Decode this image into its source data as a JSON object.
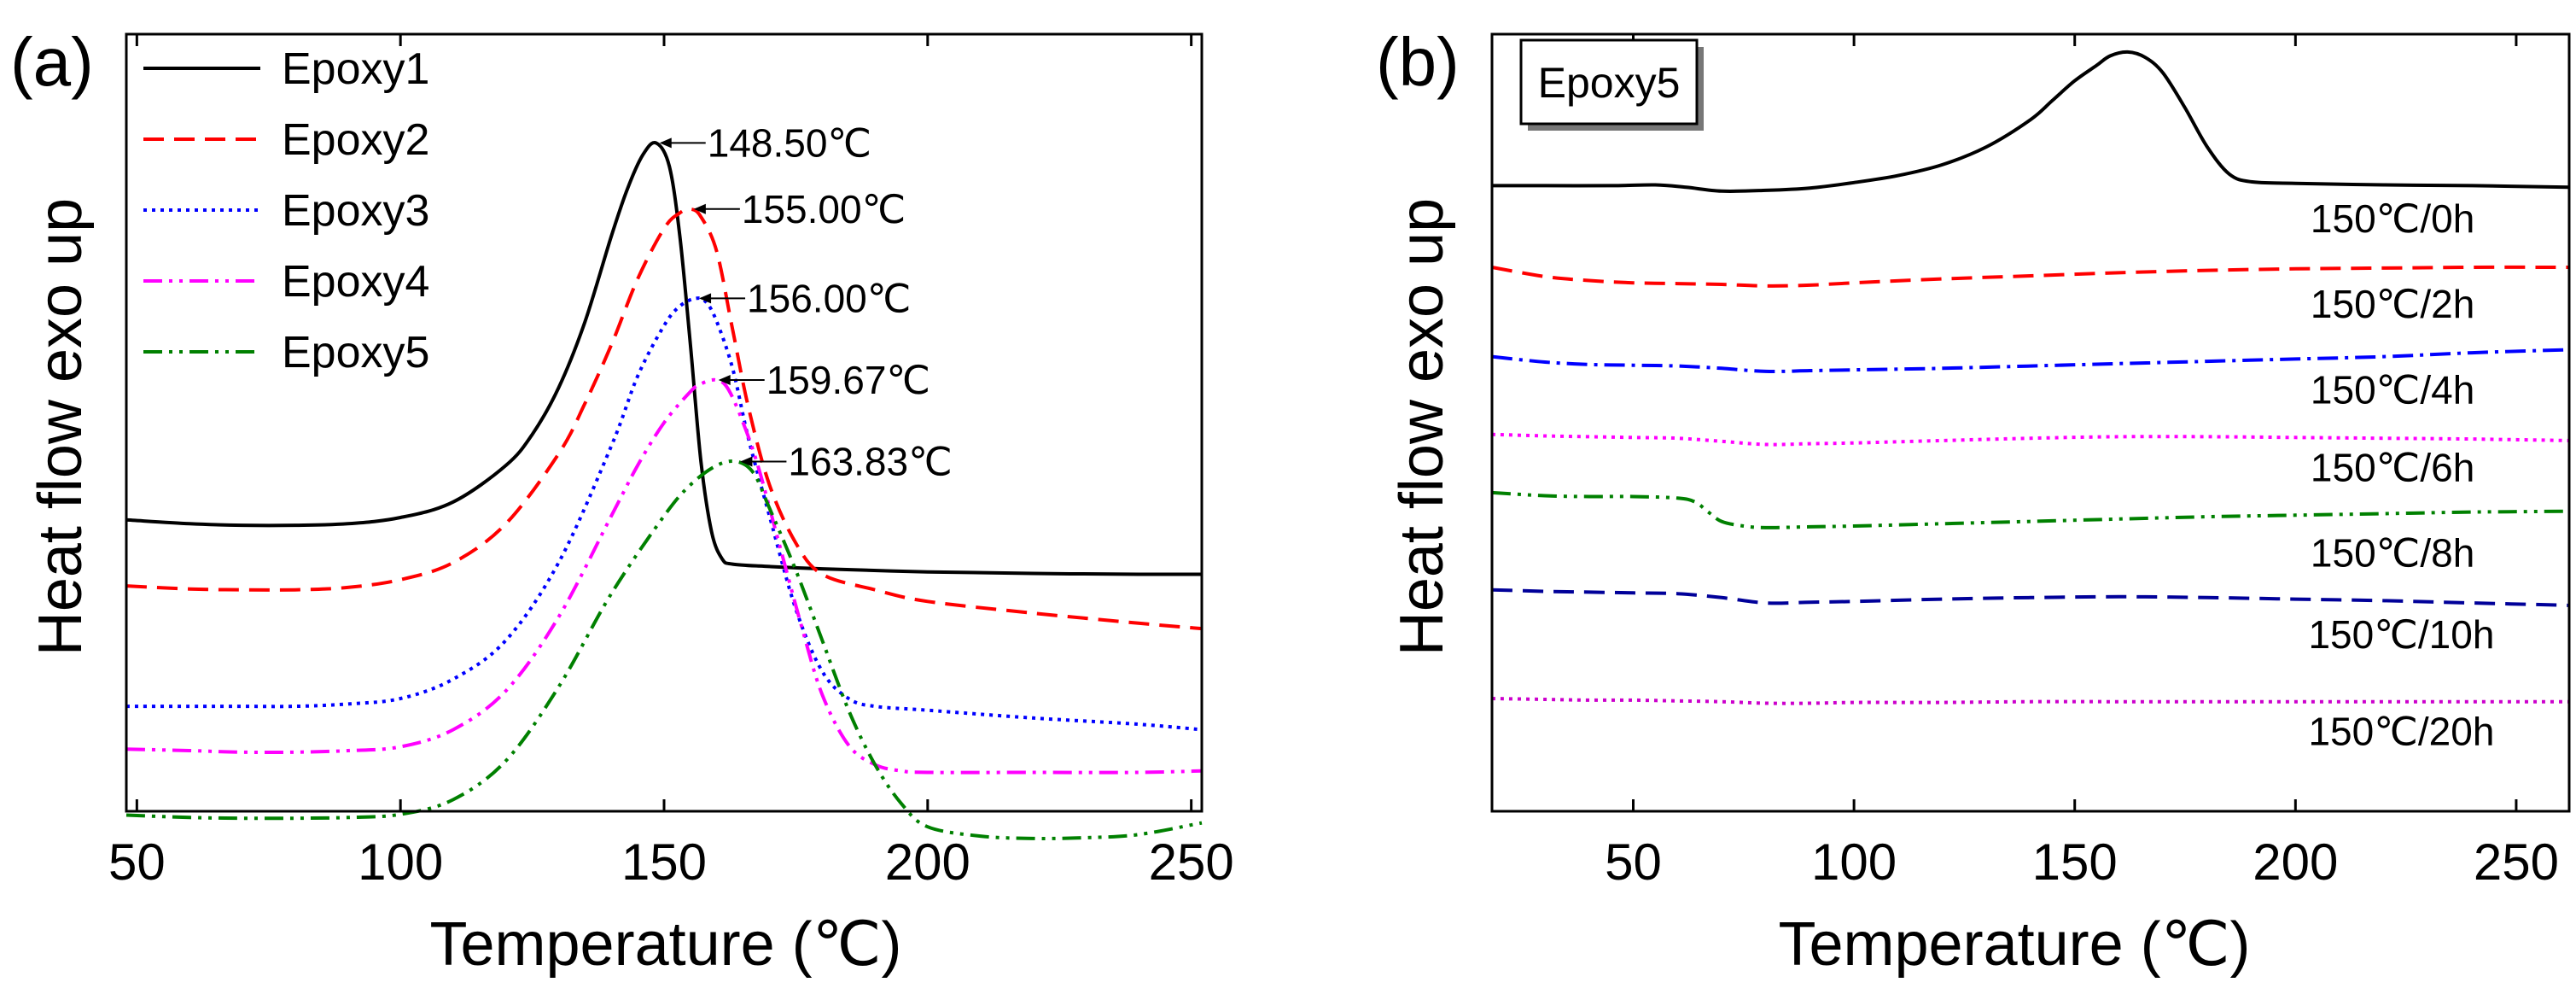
{
  "chart_data": [
    {
      "type": "line",
      "panel": "(a)",
      "xlabel": "Temperature (℃)",
      "ylabel": "Heat flow exo up",
      "xlim": [
        48,
        252
      ],
      "ylim": [
        0,
        100
      ],
      "xticks": [
        50,
        100,
        150,
        200,
        250
      ],
      "legend_position": "top-left",
      "series": [
        {
          "name": "Epoxy1",
          "color": "#000000",
          "dash": "solid",
          "x": [
            48,
            60,
            70,
            80,
            90,
            100,
            110,
            120,
            125,
            130,
            135,
            140,
            143,
            146,
            148.5,
            151,
            153,
            155,
            157,
            159,
            161,
            163,
            170,
            180,
            200,
            220,
            240,
            252
          ],
          "y": [
            37.5,
            37.0,
            36.8,
            36.8,
            37.0,
            37.8,
            39.8,
            44.5,
            48.5,
            54.5,
            63.0,
            74.0,
            80.0,
            84.5,
            86.0,
            83.0,
            74.0,
            60.0,
            45.0,
            36.0,
            32.5,
            31.8,
            31.5,
            31.2,
            30.8,
            30.6,
            30.5,
            30.5
          ]
        },
        {
          "name": "Epoxy2",
          "color": "#ff0000",
          "dash": "dashed",
          "x": [
            48,
            60,
            70,
            80,
            90,
            100,
            110,
            120,
            130,
            135,
            140,
            145,
            150,
            153,
            155,
            157,
            160,
            163,
            166,
            170,
            175,
            180,
            190,
            200,
            220,
            240,
            252
          ],
          "y": [
            29.0,
            28.6,
            28.5,
            28.5,
            28.8,
            29.8,
            32.0,
            37.0,
            46.0,
            52.5,
            60.0,
            68.5,
            75.0,
            77.0,
            77.5,
            76.5,
            72.0,
            62.0,
            52.0,
            42.0,
            34.5,
            30.5,
            28.5,
            27.0,
            25.5,
            24.2,
            23.5
          ]
        },
        {
          "name": "Epoxy3",
          "color": "#0000ff",
          "dash": "dotted",
          "x": [
            48,
            60,
            70,
            80,
            90,
            100,
            110,
            120,
            130,
            140,
            145,
            150,
            153,
            156,
            158,
            160,
            163,
            166,
            170,
            175,
            180,
            185,
            190,
            200,
            220,
            240,
            252
          ],
          "y": [
            13.5,
            13.5,
            13.5,
            13.5,
            13.8,
            14.5,
            17.0,
            22.0,
            32.0,
            47.0,
            56.0,
            62.5,
            65.0,
            66.0,
            65.5,
            63.0,
            57.0,
            48.0,
            38.0,
            26.0,
            18.0,
            14.5,
            13.5,
            13.0,
            12.0,
            11.2,
            10.5
          ]
        },
        {
          "name": "Epoxy4",
          "color": "#ff00ff",
          "dash": "dash-dot-dot",
          "x": [
            48,
            60,
            70,
            80,
            90,
            100,
            110,
            120,
            130,
            140,
            145,
            150,
            155,
            157,
            159.67,
            162,
            165,
            168,
            172,
            176,
            180,
            185,
            190,
            195,
            200,
            220,
            240,
            252
          ],
          "y": [
            8.0,
            7.8,
            7.6,
            7.6,
            7.8,
            8.3,
            10.5,
            15.5,
            25.0,
            38.0,
            44.5,
            50.0,
            54.0,
            55.0,
            55.5,
            54.5,
            50.0,
            44.0,
            34.0,
            24.0,
            15.0,
            8.5,
            6.0,
            5.2,
            5.0,
            5.0,
            5.0,
            5.2
          ]
        },
        {
          "name": "Epoxy5",
          "color": "#008000",
          "dash": "dash-dot-dot",
          "x": [
            48,
            60,
            70,
            80,
            90,
            100,
            110,
            120,
            130,
            140,
            150,
            155,
            160,
            163.83,
            167,
            170,
            175,
            180,
            185,
            190,
            195,
            200,
            210,
            220,
            230,
            240,
            252
          ],
          "y": [
            -0.5,
            -0.8,
            -0.9,
            -0.9,
            -0.8,
            -0.4,
            1.5,
            6.5,
            16.0,
            28.0,
            38.0,
            42.0,
            44.5,
            45.0,
            43.5,
            39.0,
            31.0,
            22.0,
            13.0,
            6.0,
            1.0,
            -2.0,
            -3.2,
            -3.5,
            -3.4,
            -3.0,
            -1.5
          ]
        }
      ],
      "peak_annotations": [
        {
          "text": "148.50℃",
          "x": 148.5,
          "y": 86.0
        },
        {
          "text": "155.00℃",
          "x": 155.0,
          "y": 77.5
        },
        {
          "text": "156.00℃",
          "x": 156.0,
          "y": 66.0
        },
        {
          "text": "159.67℃",
          "x": 159.67,
          "y": 55.5
        },
        {
          "text": "163.83℃",
          "x": 163.83,
          "y": 45.0
        }
      ]
    },
    {
      "type": "line",
      "panel": "(b)",
      "xlabel": "Temperature (℃)",
      "ylabel": "Heat flow exo up",
      "xlim": [
        18,
        262
      ],
      "ylim": [
        0,
        100
      ],
      "xticks": [
        50,
        100,
        150,
        200,
        250
      ],
      "sample_tag": "Epoxy5",
      "series": [
        {
          "name": "150℃/0h",
          "color": "#000000",
          "dash": "solid",
          "x": [
            18,
            30,
            45,
            55,
            62,
            70,
            80,
            90,
            100,
            110,
            120,
            130,
            140,
            145,
            150,
            155,
            158,
            162,
            166,
            170,
            175,
            180,
            185,
            190,
            200,
            220,
            240,
            262
          ],
          "y": [
            80.5,
            80.5,
            80.5,
            80.6,
            80.3,
            79.8,
            79.9,
            80.2,
            80.9,
            81.8,
            83.2,
            85.5,
            89.0,
            91.5,
            94.0,
            96.0,
            97.2,
            97.7,
            97.0,
            95.0,
            90.5,
            85.5,
            82.0,
            81.0,
            80.8,
            80.6,
            80.5,
            80.3
          ]
        },
        {
          "name": "150℃/2h",
          "color": "#ff0000",
          "dash": "dashed",
          "x": [
            18,
            30,
            40,
            50,
            60,
            70,
            80,
            90,
            100,
            120,
            140,
            160,
            180,
            200,
            220,
            240,
            262
          ],
          "y": [
            70.0,
            68.8,
            68.3,
            68.0,
            67.9,
            67.8,
            67.6,
            67.7,
            68.0,
            68.5,
            68.9,
            69.3,
            69.6,
            69.8,
            69.9,
            70.0,
            70.0
          ]
        },
        {
          "name": "150℃/4h",
          "color": "#0000ff",
          "dash": "dash-dot",
          "x": [
            18,
            30,
            40,
            50,
            60,
            70,
            80,
            90,
            100,
            120,
            140,
            160,
            180,
            200,
            220,
            240,
            262
          ],
          "y": [
            58.5,
            57.8,
            57.5,
            57.4,
            57.3,
            57.0,
            56.6,
            56.7,
            56.8,
            57.0,
            57.3,
            57.6,
            57.9,
            58.2,
            58.5,
            59.0,
            59.4
          ]
        },
        {
          "name": "150℃/6h",
          "color": "#ff00ff",
          "dash": "dotted",
          "x": [
            18,
            30,
            40,
            50,
            60,
            70,
            80,
            90,
            100,
            120,
            140,
            160,
            180,
            200,
            220,
            240,
            262
          ],
          "y": [
            48.5,
            48.3,
            48.2,
            48.1,
            48.0,
            47.6,
            47.2,
            47.3,
            47.4,
            47.7,
            48.0,
            48.2,
            48.2,
            48.1,
            48.0,
            47.9,
            47.7
          ]
        },
        {
          "name": "150℃/8h",
          "color": "#008000",
          "dash": "dash-dot-dot",
          "x": [
            18,
            30,
            40,
            50,
            60,
            64,
            67,
            70,
            75,
            80,
            90,
            100,
            120,
            140,
            160,
            180,
            200,
            220,
            240,
            262
          ],
          "y": [
            41.0,
            40.6,
            40.5,
            40.5,
            40.3,
            39.8,
            38.5,
            37.3,
            36.7,
            36.5,
            36.6,
            36.7,
            37.0,
            37.3,
            37.6,
            37.9,
            38.1,
            38.3,
            38.5,
            38.6
          ]
        },
        {
          "name": "150℃/10h",
          "color": "#000099",
          "dash": "dashed",
          "x": [
            18,
            30,
            40,
            50,
            60,
            70,
            80,
            90,
            100,
            120,
            140,
            160,
            180,
            200,
            220,
            240,
            262
          ],
          "y": [
            28.5,
            28.3,
            28.2,
            28.1,
            28.0,
            27.5,
            26.8,
            26.9,
            27.0,
            27.3,
            27.5,
            27.6,
            27.5,
            27.3,
            27.1,
            26.8,
            26.5
          ]
        },
        {
          "name": "150℃/20h",
          "color": "#cc00cc",
          "dash": "dotted",
          "x": [
            18,
            30,
            40,
            50,
            60,
            70,
            80,
            90,
            100,
            120,
            140,
            160,
            180,
            200,
            220,
            240,
            262
          ],
          "y": [
            14.5,
            14.4,
            14.3,
            14.3,
            14.2,
            14.1,
            13.9,
            13.9,
            14.0,
            14.0,
            14.1,
            14.1,
            14.1,
            14.1,
            14.1,
            14.1,
            14.1
          ]
        }
      ],
      "series_labels": [
        {
          "text": "150℃/0h",
          "x": 222,
          "y": 74.5
        },
        {
          "text": "150℃/2h",
          "x": 222,
          "y": 63.5
        },
        {
          "text": "150℃/4h",
          "x": 222,
          "y": 52.5
        },
        {
          "text": "150℃/6h",
          "x": 222,
          "y": 42.5
        },
        {
          "text": "150℃/8h",
          "x": 222,
          "y": 31.5
        },
        {
          "text": "150℃/10h",
          "x": 224,
          "y": 21.0
        },
        {
          "text": "150℃/20h",
          "x": 224,
          "y": 8.5
        }
      ]
    }
  ]
}
